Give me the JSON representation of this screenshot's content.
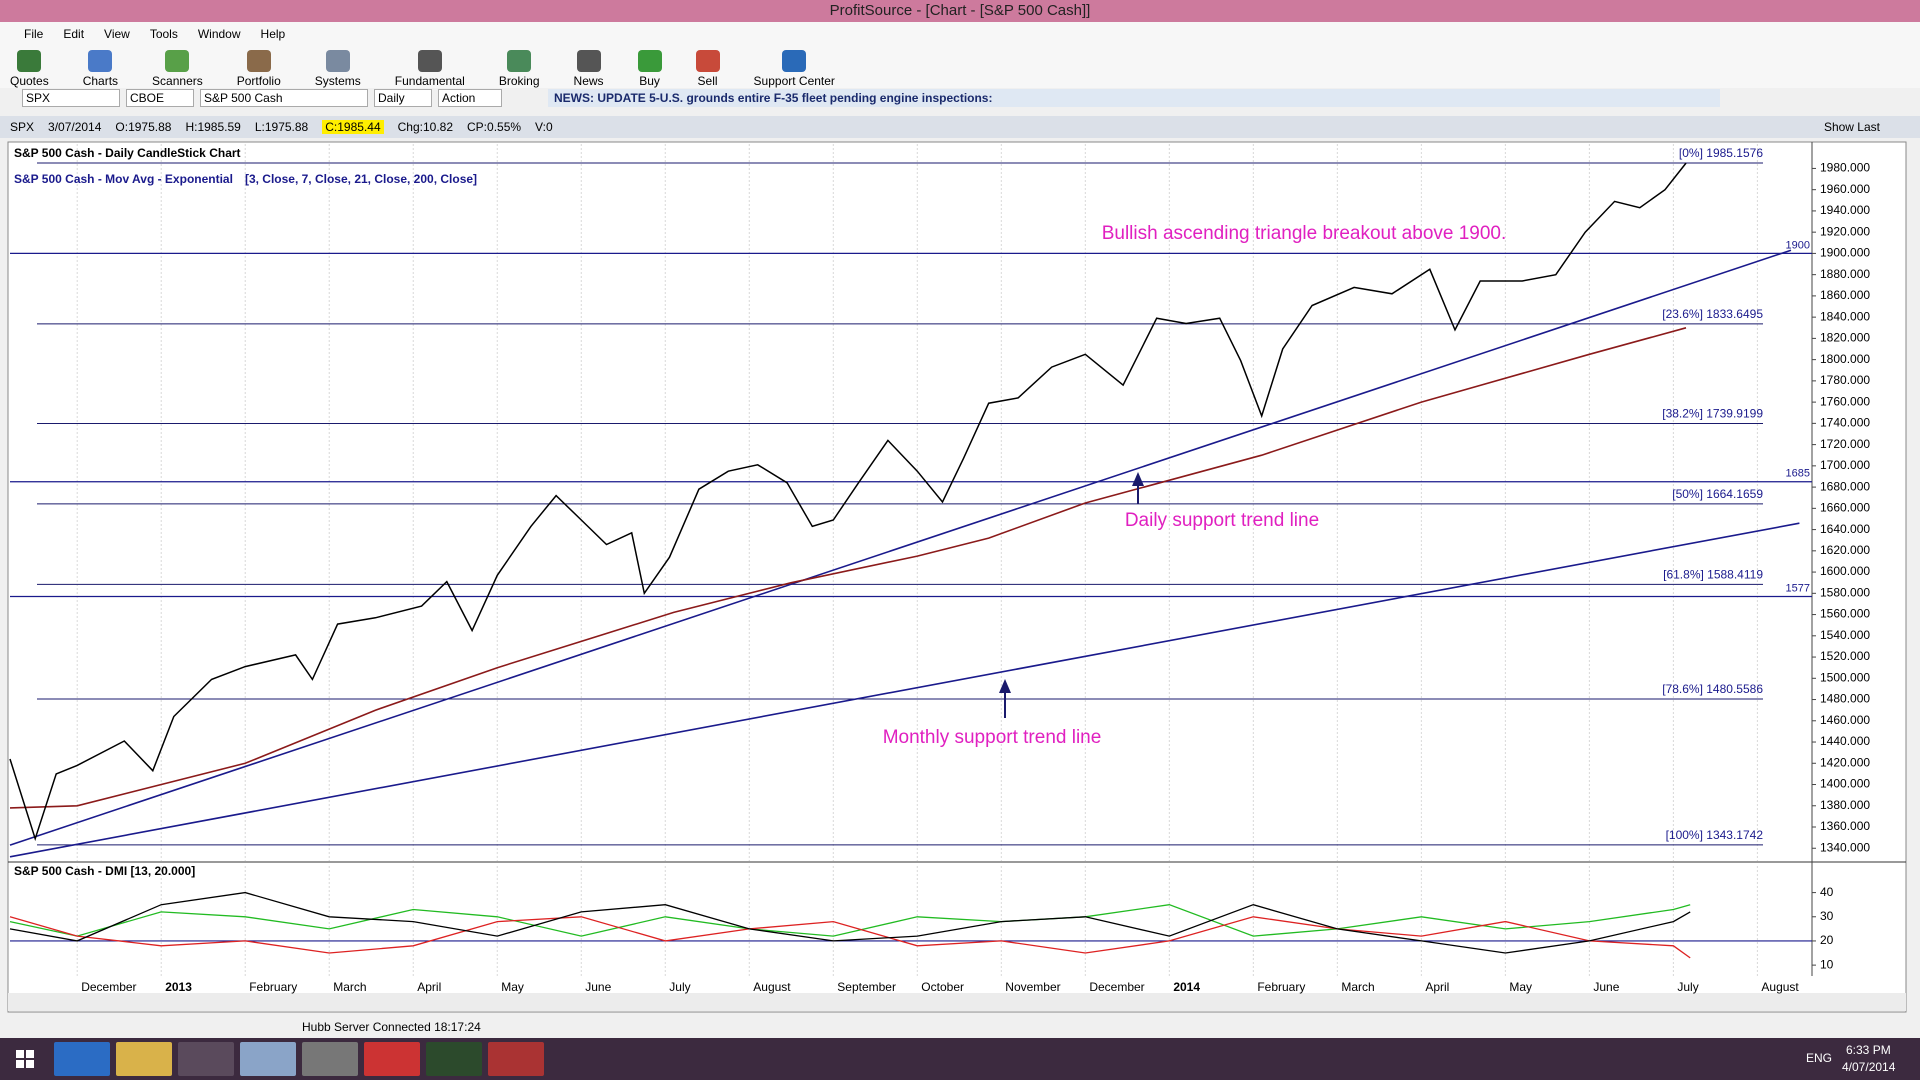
{
  "window": {
    "title": "ProfitSource - [Chart -  [S&P 500 Cash]]"
  },
  "menu": [
    "File",
    "Edit",
    "View",
    "Tools",
    "Window",
    "Help"
  ],
  "toolbar": [
    "Quotes",
    "Charts",
    "Scanners",
    "Portfolio",
    "Systems",
    "Fundamental",
    "Broking",
    "News",
    "Buy",
    "Sell",
    "Support Center"
  ],
  "symbol_bar": {
    "symbol": "SPX",
    "exchange": "CBOE",
    "name": "S&P 500 Cash",
    "period": "Daily",
    "action": "Action",
    "news": "NEWS: UPDATE 5-U.S. grounds entire F-35 fleet pending engine inspections:"
  },
  "quote_bar": {
    "fields": [
      "SPX",
      "3/07/2014",
      "O:1975.88",
      "H:1985.59",
      "L:1975.88",
      "C:1985.44",
      "Chg:10.82",
      "CP:0.55%",
      "V:0"
    ],
    "show_last": "Show Last"
  },
  "chart_data": [
    {
      "type": "line",
      "title": "S&P 500 Cash - Daily CandleStick Chart",
      "legend_title": "S&P 500 Cash - Mov Avg - Exponential",
      "legend_params": "[3, Close, 7, Close, 21, Close, 200, Close]",
      "color": "#000000",
      "x": [
        -0.8,
        -0.5,
        -0.25,
        0,
        0.56,
        0.9,
        1.15,
        1.6,
        2,
        2.6,
        2.8,
        3.1,
        3.55,
        4.1,
        4.4,
        4.7,
        5,
        5.4,
        5.7,
        6,
        6.3,
        6.6,
        6.75,
        7.05,
        7.4,
        7.75,
        8.1,
        8.45,
        8.75,
        9,
        9.3,
        9.65,
        10,
        10.3,
        10.55,
        10.85,
        11.2,
        11.6,
        12,
        12.45,
        12.85,
        13.2,
        13.6,
        13.85,
        14.1,
        14.35,
        14.7,
        15.2,
        15.65,
        16.1,
        16.4,
        16.7,
        17.2,
        17.6,
        17.95,
        18.3,
        18.6,
        18.9,
        19.15
      ],
      "values": [
        1424,
        1349,
        1410,
        1418,
        1441,
        1413,
        1464,
        1499,
        1511,
        1522,
        1499,
        1551,
        1557,
        1568,
        1591,
        1545,
        1597,
        1643,
        1672,
        1649,
        1626,
        1637,
        1580,
        1614,
        1678,
        1695,
        1701,
        1684,
        1643,
        1649,
        1684,
        1724,
        1695,
        1666,
        1707,
        1759,
        1764,
        1793,
        1805,
        1776,
        1839,
        1834,
        1839,
        1799,
        1747,
        1810,
        1851,
        1868,
        1862,
        1885,
        1828,
        1874,
        1874,
        1880,
        1920,
        1949,
        1943,
        1960,
        1985
      ],
      "moving_average": {
        "color": "#8b1a1a",
        "x": [
          -0.8,
          0,
          2,
          3.55,
          5,
          7.1,
          8.5,
          10,
          10.85,
          12,
          14.1,
          16,
          18,
          19.15
        ],
        "values": [
          1378,
          1380,
          1420,
          1470,
          1510,
          1562,
          1590,
          1615,
          1632,
          1665,
          1710,
          1760,
          1805,
          1830
        ]
      },
      "trend_lines": [
        {
          "color": "#1a1a8c",
          "x": [
            -0.8,
            20.4
          ],
          "values": [
            1343,
            1903
          ]
        },
        {
          "color": "#1a1a8c",
          "x": [
            -0.8,
            20.5
          ],
          "values": [
            1332,
            1646
          ]
        }
      ],
      "fib_levels": [
        {
          "value": 1985.1576,
          "label": "[0%] 1985.1576"
        },
        {
          "value": 1833.6495,
          "label": "[23.6%] 1833.6495"
        },
        {
          "value": 1739.9199,
          "label": "[38.2%] 1739.9199"
        },
        {
          "value": 1664.1659,
          "label": "[50%] 1664.1659"
        },
        {
          "value": 1588.4119,
          "label": "[61.8%] 1588.4119"
        },
        {
          "value": 1480.5586,
          "label": "[78.6%] 1480.5586"
        },
        {
          "value": 1343.1742,
          "label": "[100%] 1343.1742"
        }
      ],
      "levels": [
        1900,
        1685,
        1577
      ],
      "annotations": [
        "Bullish ascending triangle breakout above 1900.",
        "Daily support trend line",
        "Monthly support trend line"
      ],
      "xlim": [
        -0.8,
        20.65
      ],
      "xticks": [
        {
          "value": 0,
          "label": "December"
        },
        {
          "value": 1,
          "label": "2013"
        },
        {
          "value": 2,
          "label": "February"
        },
        {
          "value": 3,
          "label": "March"
        },
        {
          "value": 4,
          "label": "April"
        },
        {
          "value": 5,
          "label": "May"
        },
        {
          "value": 6,
          "label": "June"
        },
        {
          "value": 7,
          "label": "July"
        },
        {
          "value": 8,
          "label": "August"
        },
        {
          "value": 9,
          "label": "September"
        },
        {
          "value": 10,
          "label": "October"
        },
        {
          "value": 11,
          "label": "November"
        },
        {
          "value": 12,
          "label": "December"
        },
        {
          "value": 13,
          "label": "2014"
        },
        {
          "value": 14,
          "label": "February"
        },
        {
          "value": 15,
          "label": "March"
        },
        {
          "value": 16,
          "label": "April"
        },
        {
          "value": 17,
          "label": "May"
        },
        {
          "value": 18,
          "label": "June"
        },
        {
          "value": 19,
          "label": "July"
        },
        {
          "value": 20,
          "label": "August"
        }
      ],
      "ylim": [
        1328,
        2003
      ],
      "yticks": [
        {
          "value": 1340,
          "label": "1340.000"
        },
        {
          "value": 1360,
          "label": "1360.000"
        },
        {
          "value": 1380,
          "label": "1380.000"
        },
        {
          "value": 1400,
          "label": "1400.000"
        },
        {
          "value": 1420,
          "label": "1420.000"
        },
        {
          "value": 1440,
          "label": "1440.000"
        },
        {
          "value": 1460,
          "label": "1460.000"
        },
        {
          "value": 1480,
          "label": "1480.000"
        },
        {
          "value": 1500,
          "label": "1500.000"
        },
        {
          "value": 1520,
          "label": "1520.000"
        },
        {
          "value": 1540,
          "label": "1540.000"
        },
        {
          "value": 1560,
          "label": "1560.000"
        },
        {
          "value": 1580,
          "label": "1580.000"
        },
        {
          "value": 1600,
          "label": "1600.000"
        },
        {
          "value": 1620,
          "label": "1620.000"
        },
        {
          "value": 1640,
          "label": "1640.000"
        },
        {
          "value": 1660,
          "label": "1660.000"
        },
        {
          "value": 1680,
          "label": "1680.000"
        },
        {
          "value": 1700,
          "label": "1700.000"
        },
        {
          "value": 1720,
          "label": "1720.000"
        },
        {
          "value": 1740,
          "label": "1740.000"
        },
        {
          "value": 1760,
          "label": "1760.000"
        },
        {
          "value": 1780,
          "label": "1780.000"
        },
        {
          "value": 1800,
          "label": "1800.000"
        },
        {
          "value": 1820,
          "label": "1820.000"
        },
        {
          "value": 1840,
          "label": "1840.000"
        },
        {
          "value": 1860,
          "label": "1860.000"
        },
        {
          "value": 1880,
          "label": "1880.000"
        },
        {
          "value": 1900,
          "label": "1900.000"
        },
        {
          "value": 1920,
          "label": "1920.000"
        },
        {
          "value": 1940,
          "label": "1940.000"
        },
        {
          "value": 1960,
          "label": "1960.000"
        },
        {
          "value": 1980,
          "label": "1980.000"
        }
      ],
      "grid": true
    },
    {
      "type": "line",
      "title": "S&P 500 Cash - DMI [13, 20.000]",
      "x": [
        -0.8,
        0,
        1,
        2,
        3,
        4,
        5,
        6,
        7,
        8,
        9,
        10,
        11,
        12,
        13,
        14,
        15,
        16,
        17,
        18,
        19,
        19.2
      ],
      "series": [
        {
          "color": "#22bb22",
          "values": [
            28,
            22,
            32,
            30,
            25,
            33,
            30,
            22,
            30,
            25,
            22,
            30,
            28,
            30,
            35,
            22,
            25,
            30,
            25,
            28,
            33,
            35
          ]
        },
        {
          "color": "#dd2222",
          "values": [
            30,
            22,
            18,
            20,
            15,
            18,
            28,
            30,
            20,
            25,
            28,
            18,
            20,
            15,
            20,
            30,
            25,
            22,
            28,
            20,
            18,
            13
          ]
        },
        {
          "color": "#000000",
          "values": [
            25,
            20,
            35,
            40,
            30,
            28,
            22,
            32,
            35,
            25,
            20,
            22,
            28,
            30,
            22,
            35,
            25,
            20,
            15,
            20,
            28,
            32
          ]
        }
      ],
      "threshold": 20,
      "ylim": [
        5.5,
        51
      ],
      "yticks": [
        10,
        20,
        30,
        40
      ]
    }
  ],
  "status": "Hubb Server Connected 18:17:24",
  "taskbar": {
    "language": "ENG",
    "time": "6:33 PM",
    "date": "4/07/2014"
  }
}
